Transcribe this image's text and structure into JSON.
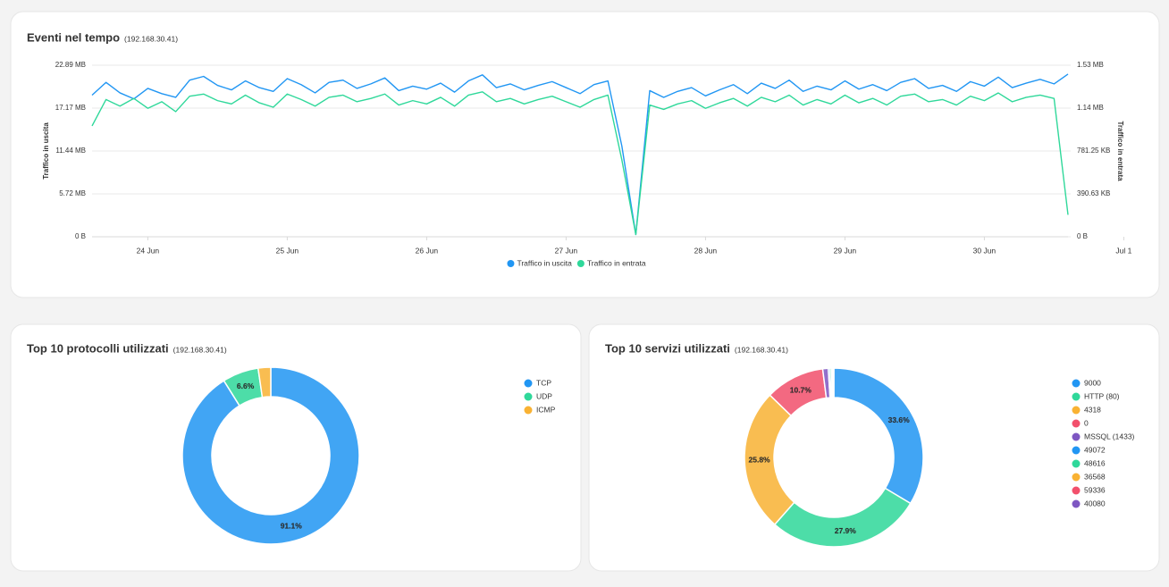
{
  "chart_data": [
    {
      "type": "line",
      "title": "Eventi nel tempo",
      "subtitle": "(192.168.30.41)",
      "y_label": "Traffico in uscita",
      "y2_label": "Traffico in entrata",
      "x": [
        23.6,
        23.7,
        23.8,
        23.9,
        24.0,
        24.1,
        24.2,
        24.3,
        24.4,
        24.5,
        24.6,
        24.7,
        24.8,
        24.9,
        25.0,
        25.1,
        25.2,
        25.3,
        25.4,
        25.5,
        25.6,
        25.7,
        25.8,
        25.9,
        26.0,
        26.1,
        26.2,
        26.3,
        26.4,
        26.5,
        26.6,
        26.7,
        26.8,
        26.9,
        27.0,
        27.1,
        27.2,
        27.3,
        27.4,
        27.5,
        27.6,
        27.7,
        27.8,
        27.9,
        28.0,
        28.1,
        28.2,
        28.3,
        28.4,
        28.5,
        28.6,
        28.7,
        28.8,
        28.9,
        29.0,
        29.1,
        29.2,
        29.3,
        29.4,
        29.5,
        29.6,
        29.7,
        29.8,
        29.9,
        30.0,
        30.1,
        30.2,
        30.3,
        30.4,
        30.5,
        30.6
      ],
      "xlim": [
        23.6,
        30.6
      ],
      "xticks": [
        {
          "value": 24,
          "label": "24 Jun"
        },
        {
          "value": 25,
          "label": "25 Jun"
        },
        {
          "value": 26,
          "label": "26 Jun"
        },
        {
          "value": 27,
          "label": "27 Jun"
        },
        {
          "value": 28,
          "label": "28 Jun"
        },
        {
          "value": 29,
          "label": "29 Jun"
        },
        {
          "value": 30,
          "label": "30 Jun"
        },
        {
          "value": 31,
          "label": "Jul 1"
        }
      ],
      "ylim": [
        0,
        22.89
      ],
      "yticks": [
        {
          "value": 0,
          "label": "0 B"
        },
        {
          "value": 5.72,
          "label": "5.72 MB"
        },
        {
          "value": 11.44,
          "label": "11.44 MB"
        },
        {
          "value": 17.17,
          "label": "17.17 MB"
        },
        {
          "value": 22.89,
          "label": "22.89 MB"
        }
      ],
      "y2lim": [
        0,
        1562.5
      ],
      "y2ticks": [
        {
          "value": 0,
          "label": "0 B"
        },
        {
          "value": 390.63,
          "label": "390.63 KB"
        },
        {
          "value": 781.25,
          "label": "781.25 KB"
        },
        {
          "value": 1171.88,
          "label": "1.14 MB"
        },
        {
          "value": 1562.5,
          "label": "1.53 MB"
        }
      ],
      "grid": true,
      "series": [
        {
          "name": "Traffico in uscita",
          "color": "#2196f3",
          "axis": "y",
          "values": [
            18.9,
            20.6,
            19.2,
            18.4,
            19.8,
            19.1,
            18.6,
            20.9,
            21.4,
            20.2,
            19.6,
            20.8,
            19.9,
            19.4,
            21.1,
            20.3,
            19.2,
            20.6,
            20.9,
            19.8,
            20.4,
            21.2,
            19.5,
            20.1,
            19.7,
            20.5,
            19.3,
            20.8,
            21.6,
            19.9,
            20.4,
            19.6,
            20.2,
            20.7,
            19.9,
            19.1,
            20.3,
            20.8,
            12.1,
            0.3,
            19.5,
            18.6,
            19.4,
            19.9,
            18.8,
            19.6,
            20.3,
            19.1,
            20.5,
            19.8,
            20.9,
            19.4,
            20.1,
            19.6,
            20.8,
            19.7,
            20.3,
            19.5,
            20.6,
            21.1,
            19.8,
            20.2,
            19.4,
            20.7,
            20.1,
            21.3,
            19.9,
            20.5,
            21.0,
            20.4,
            21.7
          ]
        },
        {
          "name": "Traffico in entrata",
          "color": "#2fd89a",
          "axis": "y2",
          "values": [
            1010,
            1250,
            1190,
            1260,
            1170,
            1230,
            1140,
            1280,
            1300,
            1240,
            1210,
            1290,
            1220,
            1180,
            1300,
            1250,
            1190,
            1270,
            1290,
            1230,
            1260,
            1300,
            1200,
            1240,
            1210,
            1270,
            1190,
            1290,
            1320,
            1230,
            1260,
            1210,
            1250,
            1280,
            1230,
            1180,
            1250,
            1290,
            700,
            20,
            1200,
            1160,
            1210,
            1240,
            1170,
            1220,
            1260,
            1190,
            1270,
            1230,
            1290,
            1200,
            1250,
            1210,
            1290,
            1220,
            1260,
            1200,
            1280,
            1300,
            1230,
            1250,
            1200,
            1280,
            1240,
            1310,
            1230,
            1270,
            1290,
            1260,
            200
          ]
        }
      ]
    },
    {
      "type": "donut",
      "title": "Top 10 protocolli utilizzati",
      "subtitle": "(192.168.30.41)",
      "categories": [
        "TCP",
        "UDP",
        "ICMP"
      ],
      "values": [
        91.1,
        6.6,
        2.3
      ],
      "value_labels": [
        "91.1%",
        "6.6%",
        null
      ],
      "colors": [
        "#2196f3",
        "#2fd89a",
        "#f9b233"
      ]
    },
    {
      "type": "donut",
      "title": "Top 10 servizi utilizzati",
      "subtitle": "(192.168.30.41)",
      "categories": [
        "9000",
        "HTTP (80)",
        "4318",
        "0",
        "MSSQL (1433)",
        "49072",
        "48616",
        "36568",
        "59336",
        "40080"
      ],
      "values": [
        33.6,
        27.9,
        25.8,
        10.7,
        1.0,
        0.3,
        0.3,
        0.2,
        0.1,
        0.1
      ],
      "value_labels": [
        "33.6%",
        "27.9%",
        "25.8%",
        "10.7%",
        null,
        null,
        null,
        null,
        null,
        null
      ],
      "colors": [
        "#2196f3",
        "#2fd89a",
        "#f9b233",
        "#f2506c",
        "#7e57c2",
        "#2196f3",
        "#2fd89a",
        "#f9b233",
        "#f2506c",
        "#7e57c2"
      ]
    }
  ]
}
